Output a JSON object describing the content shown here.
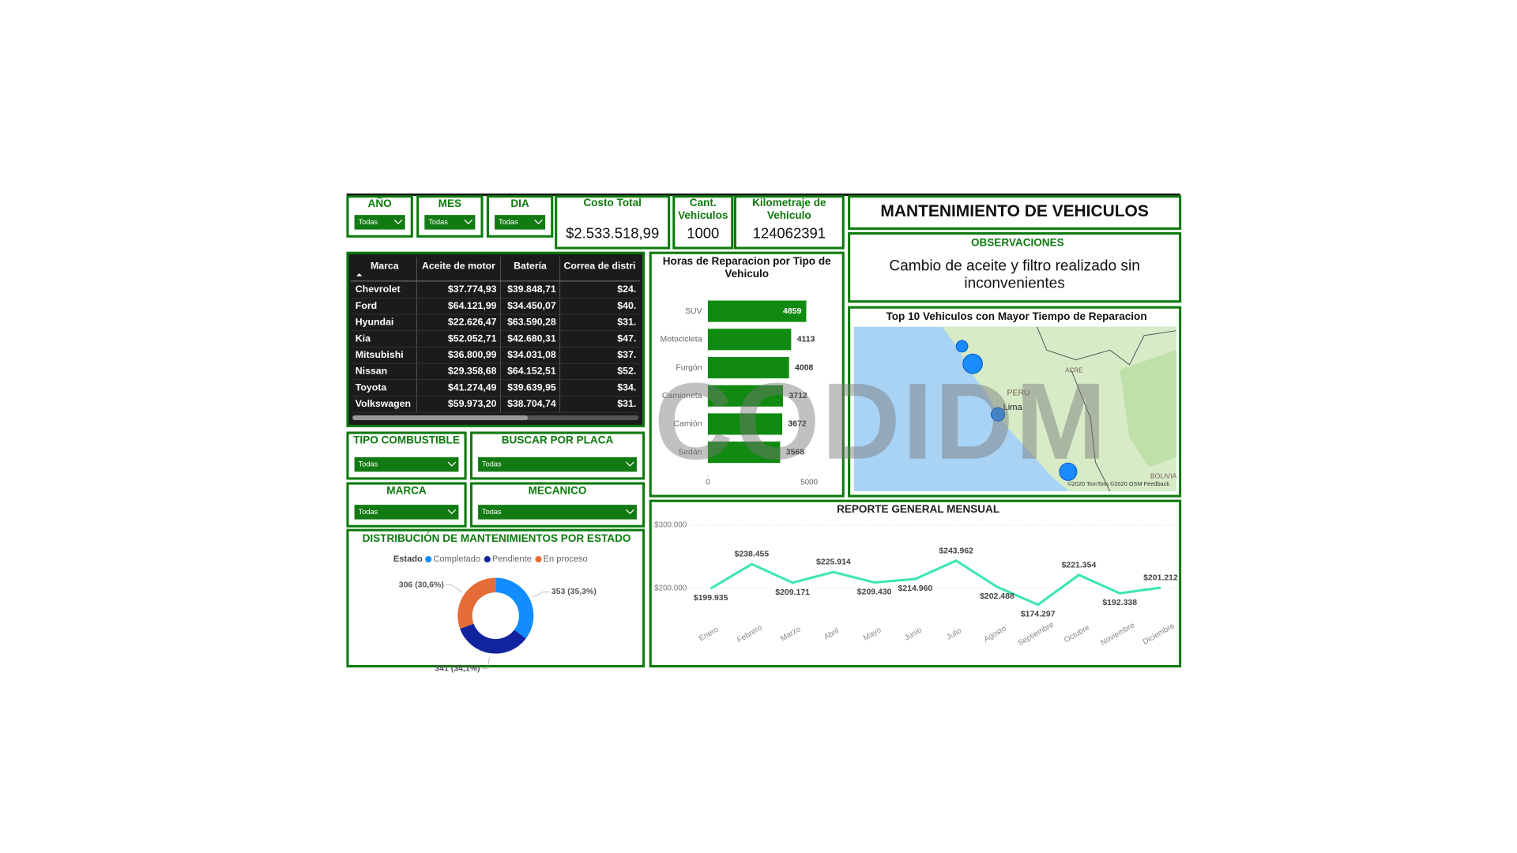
{
  "header": {
    "title": "MANTENIMIENTO DE VEHICULOS"
  },
  "filters": [
    {
      "label": "AÑO",
      "value": "Todas"
    },
    {
      "label": "MES",
      "value": "Todas"
    },
    {
      "label": "DIA",
      "value": "Todas"
    },
    {
      "label": "TIPO COMBUSTIBLE",
      "value": "Todas"
    },
    {
      "label": "BUSCAR POR PLACA",
      "value": "Todas"
    },
    {
      "label": "MARCA",
      "value": "Todas"
    },
    {
      "label": "MECANICO",
      "value": "Todas"
    }
  ],
  "kpis": [
    {
      "label": "Costo Total",
      "value": "$2.533.518,99"
    },
    {
      "label": "Cant. Vehiculos",
      "value": 1000
    },
    {
      "label": "Kilometraje de Vehiculo",
      "value": 124062391
    }
  ],
  "observations": {
    "title": "OBSERVACIONES",
    "text": "Cambio de aceite y filtro realizado sin inconvenientes"
  },
  "table": {
    "columns": [
      "Marca",
      "Aceite de motor",
      "Batería",
      "Correa de distri"
    ],
    "rows": [
      [
        "Chevrolet",
        "$37.774,93",
        "$39.848,71",
        "$24."
      ],
      [
        "Ford",
        "$64.121,99",
        "$34.450,07",
        "$40."
      ],
      [
        "Hyundai",
        "$22.626,47",
        "$63.590,28",
        "$31."
      ],
      [
        "Kia",
        "$52.052,71",
        "$42.680,31",
        "$47."
      ],
      [
        "Mitsubishi",
        "$36.800,99",
        "$34.031,08",
        "$37."
      ],
      [
        "Nissan",
        "$29.358,68",
        "$64.152,51",
        "$52."
      ],
      [
        "Toyota",
        "$41.274,49",
        "$39.639,95",
        "$34."
      ],
      [
        "Volkswagen",
        "$59.973,20",
        "$38.704,74",
        "$31."
      ]
    ]
  },
  "map": {
    "title": "Top 10 Vehiculos con Mayor Tiempo de Reparacion",
    "labels": [
      "ACRE",
      "PERU",
      "Lima",
      "BOLIVIA"
    ],
    "attribution": "©2020 TomTom ©2020 OSM Feedback"
  },
  "watermark": "CODIDM",
  "chart_data": [
    {
      "type": "bar",
      "title": "Horas de Reparacion por Tipo de Vehiculo",
      "categories": [
        "SUV",
        "Motocicleta",
        "Furgón",
        "Camioneta",
        "Camión",
        "Sedán"
      ],
      "values": [
        4859,
        4113,
        4008,
        3712,
        3672,
        3568
      ],
      "color": "#118a11",
      "xlim": [
        0,
        5000
      ],
      "xticks": [
        0,
        5000
      ]
    },
    {
      "type": "pie",
      "title": "DISTRIBUCIÓN DE MANTENIMIENTOS POR ESTADO",
      "legend_title": "Estado",
      "categories": [
        "Completado",
        "Pendiente",
        "En proceso"
      ],
      "values": [
        353,
        341,
        306
      ],
      "value_labels": [
        "353 (35,3%)",
        "341 (34,1%)",
        "306 (30,6%)"
      ],
      "colors": [
        "#118dff",
        "#12239e",
        "#e66c37"
      ]
    },
    {
      "type": "line",
      "title": "REPORTE GENERAL MENSUAL",
      "categories": [
        "Enero",
        "Febrero",
        "Marzo",
        "Abril",
        "Mayo",
        "Junio",
        "Julio",
        "Agosto",
        "Septiembre",
        "Octubre",
        "Noviembre",
        "Diciembre"
      ],
      "values": [
        199935,
        238455,
        209171,
        225914,
        209430,
        214960,
        243962,
        202488,
        174297,
        221354,
        192338,
        201212
      ],
      "value_labels": [
        "$199.935",
        "$238.455",
        "$209.171",
        "$225.914",
        "$209.430",
        "$214.960",
        "$243.962",
        "$202.488",
        "$174.297",
        "$221.354",
        "$192.338",
        "$201.212"
      ],
      "color": "#3ee6b5",
      "ylim": [
        150000,
        300000
      ],
      "yticks": [
        {
          "value": 200000,
          "label": "$200.000"
        },
        {
          "value": 300000,
          "label": "$300.000"
        }
      ],
      "grid": true
    }
  ]
}
